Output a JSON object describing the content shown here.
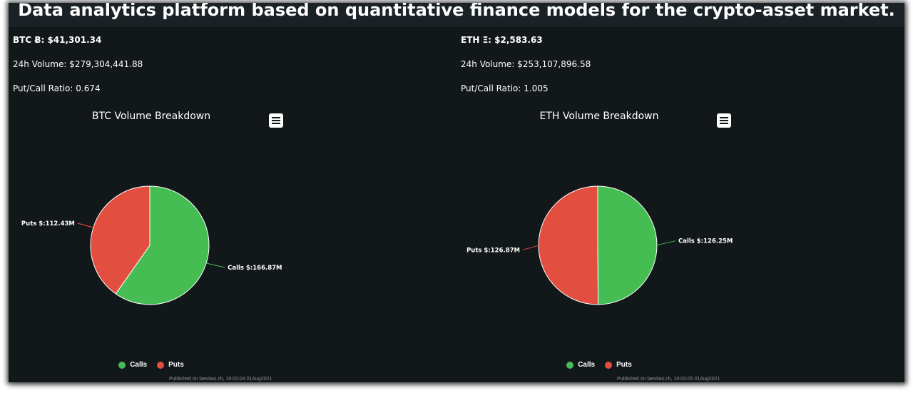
{
  "header": {
    "title": "Data analytics platform based on quantitative finance models for the crypto-asset market."
  },
  "colors": {
    "calls": "#45bd52",
    "puts": "#e24e3f",
    "background": "#121719",
    "header_bar": "#1b2226",
    "connector_calls": "#45bd52",
    "connector_puts": "#e24e3f"
  },
  "panels": [
    {
      "price": "BTC Ƀ: $41,301.34",
      "volume": "24h Volume: $279,304,441.88",
      "ratio": "Put/Call Ratio: 0.674",
      "menu_icon": "hamburger-menu-icon",
      "published": "Published on laevitas.ch, 19:00:04 01Aug2021"
    },
    {
      "price": "ETH Ξ: $2,583.63",
      "volume": "24h Volume: $253,107,896.58",
      "ratio": "Put/Call Ratio: 1.005",
      "menu_icon": "hamburger-menu-icon",
      "published": "Published on laevitas.ch, 19:00:05 01Aug2021"
    }
  ],
  "chart_data": [
    {
      "type": "pie",
      "title": "BTC Volume Breakdown",
      "categories": [
        "Calls",
        "Puts"
      ],
      "values": [
        166.87,
        112.43
      ],
      "labels": [
        "Calls $:166.87M",
        "Puts $:112.43M"
      ],
      "legend": [
        "Calls",
        "Puts"
      ],
      "legend_position": "bottom"
    },
    {
      "type": "pie",
      "title": "ETH Volume Breakdown",
      "categories": [
        "Calls",
        "Puts"
      ],
      "values": [
        126.25,
        126.87
      ],
      "labels": [
        "Calls $:126.25M",
        "Puts $:126.87M"
      ],
      "legend": [
        "Calls",
        "Puts"
      ],
      "legend_position": "bottom"
    }
  ]
}
